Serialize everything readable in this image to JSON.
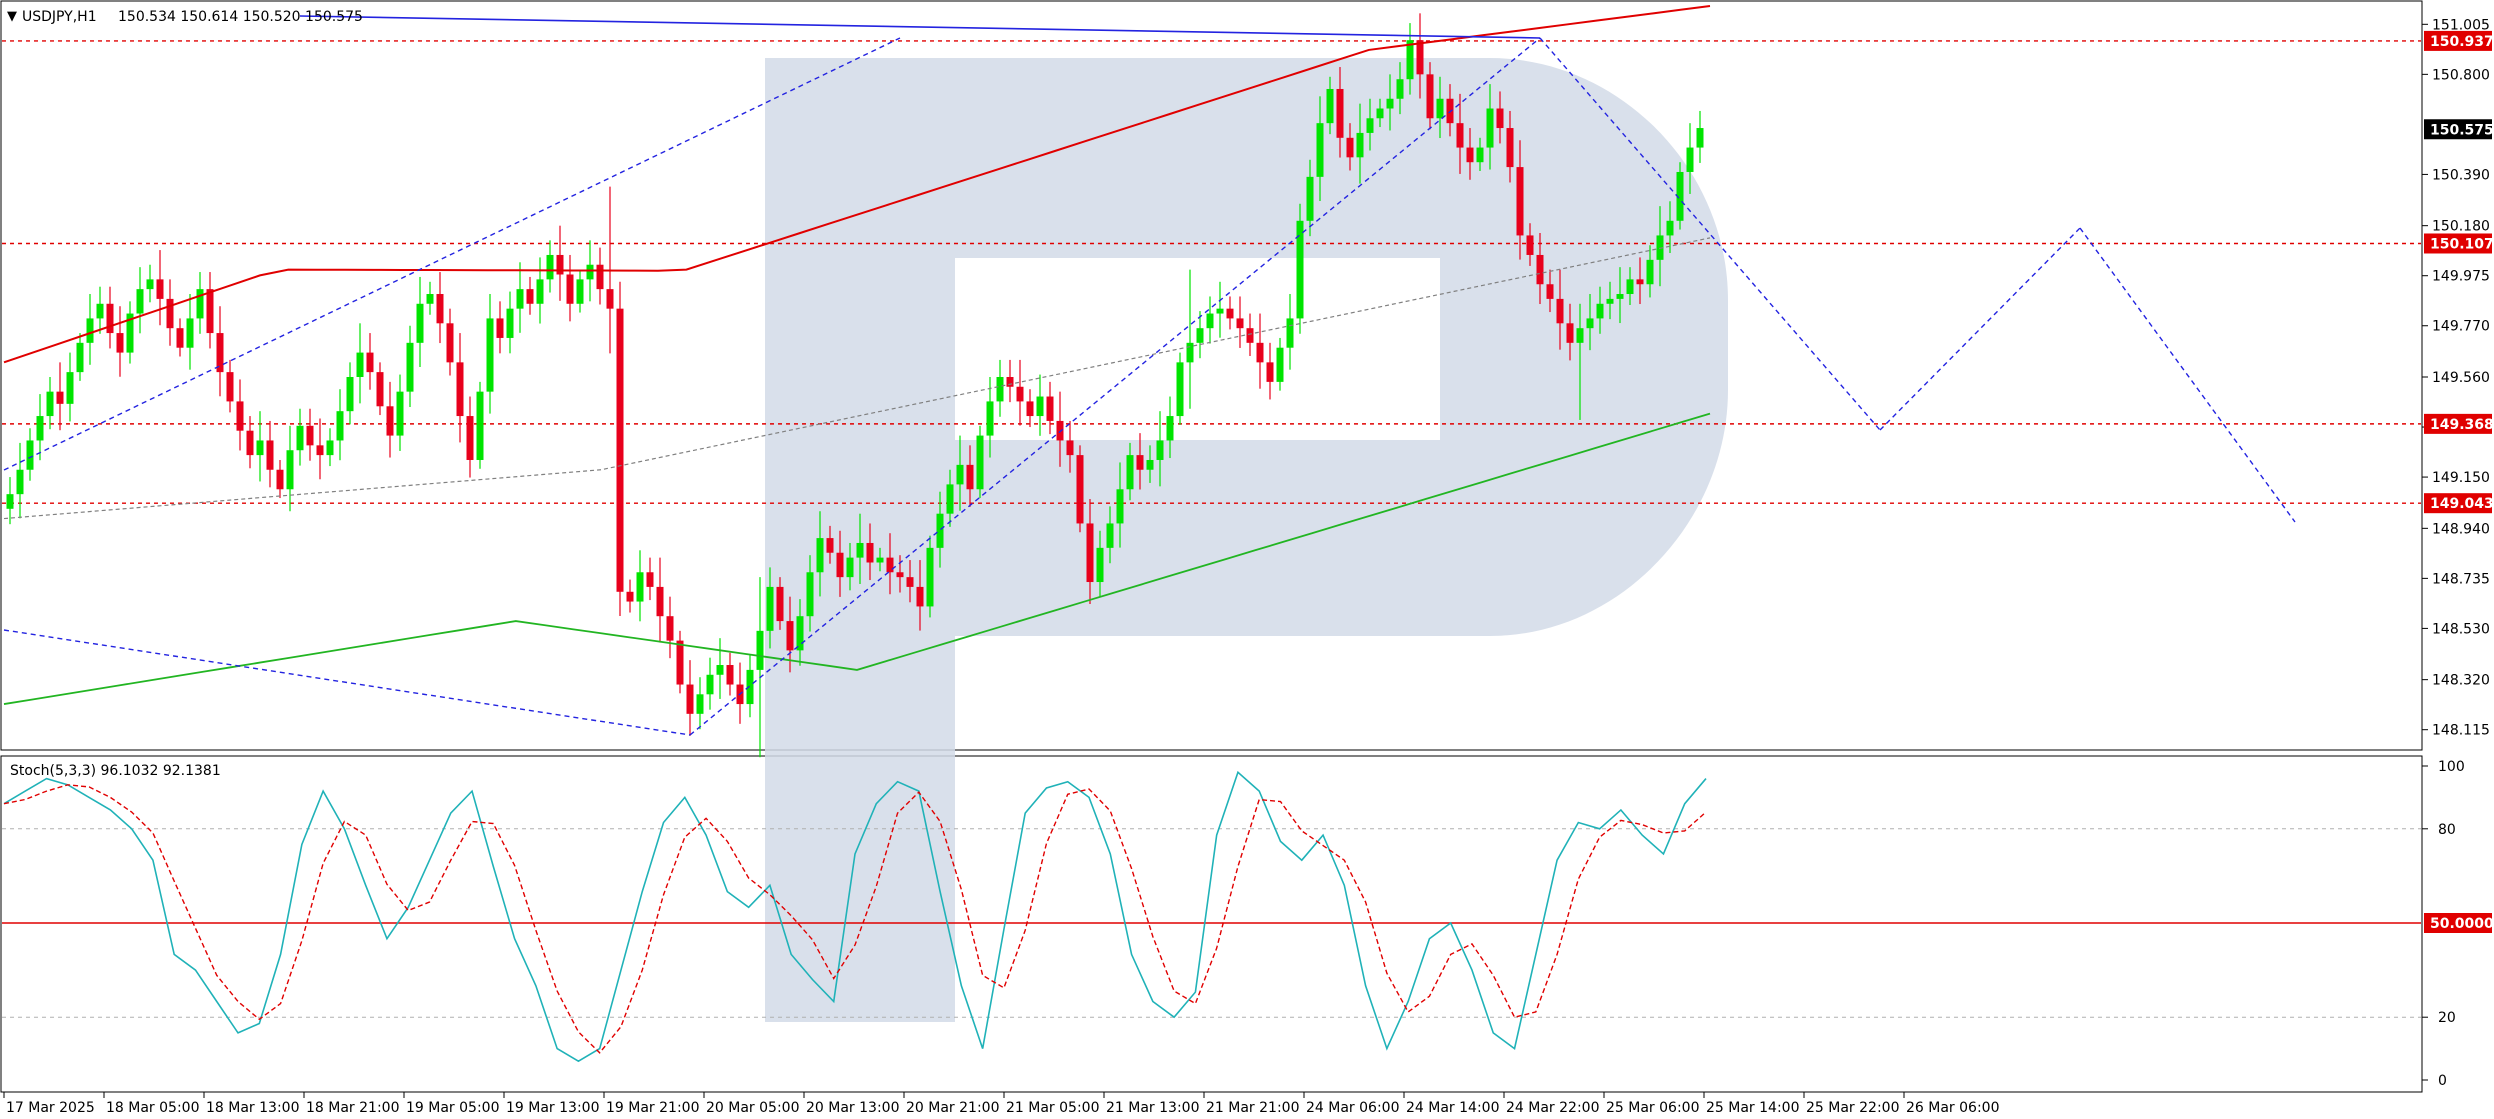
{
  "header": {
    "symbol": "USDJPY,H1",
    "ohlc": "150.534 150.614 150.520 150.575"
  },
  "stoch_header": "Stoch(5,3,3) 96.1032 92.1381",
  "colors": {
    "bull": "#00e400",
    "bear": "#e8001c",
    "ma_slow": "#e00000",
    "ma_fast": "#22b522",
    "ma_mid": "#808080",
    "level": "#e00000",
    "trend": "#2323e0",
    "stoch_main": "#20b2b8",
    "stoch_signal": "#e00000",
    "watermark": "#d2dbe8"
  },
  "chart_data": [
    {
      "type": "candlestick",
      "title": "USDJPY,H1",
      "ylim": [
        148.0,
        151.1
      ],
      "y_ticks": [
        "151.005",
        "150.800",
        "150.390",
        "150.180",
        "149.975",
        "149.770",
        "149.560",
        "149.355",
        "149.150",
        "148.940",
        "148.735",
        "148.530",
        "148.320",
        "148.115"
      ],
      "price_labels": [
        {
          "value": "150.937",
          "kind": "level"
        },
        {
          "value": "150.575",
          "kind": "current"
        },
        {
          "value": "150.107",
          "kind": "level"
        },
        {
          "value": "149.368",
          "kind": "level"
        },
        {
          "value": "149.043",
          "kind": "level"
        }
      ],
      "x_labels": [
        "17 Mar 2025",
        "18 Mar 05:00",
        "18 Mar 13:00",
        "18 Mar 21:00",
        "19 Mar 05:00",
        "19 Mar 13:00",
        "19 Mar 21:00",
        "20 Mar 05:00",
        "20 Mar 13:00",
        "20 Mar 21:00",
        "21 Mar 05:00",
        "21 Mar 13:00",
        "21 Mar 21:00",
        "24 Mar 06:00",
        "24 Mar 14:00",
        "24 Mar 22:00",
        "25 Mar 06:00",
        "25 Mar 14:00",
        "25 Mar 22:00",
        "26 Mar 06:00"
      ],
      "candles_close": [
        149.08,
        149.18,
        149.3,
        149.4,
        149.5,
        149.45,
        149.58,
        149.7,
        149.8,
        149.86,
        149.74,
        149.66,
        149.82,
        149.92,
        149.96,
        149.88,
        149.76,
        149.68,
        149.8,
        149.92,
        149.74,
        149.58,
        149.46,
        149.34,
        149.24,
        149.3,
        149.18,
        149.1,
        149.26,
        149.36,
        149.28,
        149.24,
        149.3,
        149.42,
        149.56,
        149.66,
        149.58,
        149.44,
        149.32,
        149.5,
        149.7,
        149.86,
        149.9,
        149.78,
        149.62,
        149.4,
        149.22,
        149.5,
        149.8,
        149.72,
        149.84,
        149.92,
        149.86,
        149.96,
        150.06,
        149.98,
        149.86,
        149.96,
        150.02,
        149.92,
        149.84,
        148.68,
        148.64,
        148.76,
        148.7,
        148.58,
        148.48,
        148.3,
        148.18,
        148.26,
        148.34,
        148.38,
        148.3,
        148.22,
        148.36,
        148.52,
        148.7,
        148.56,
        148.44,
        148.58,
        148.76,
        148.9,
        148.84,
        148.74,
        148.82,
        148.88,
        148.8,
        148.82,
        148.76,
        148.74,
        148.7,
        148.62,
        148.86,
        149.0,
        149.12,
        149.2,
        149.1,
        149.32,
        149.46,
        149.56,
        149.52,
        149.46,
        149.4,
        149.48,
        149.38,
        149.3,
        149.24,
        148.96,
        148.72,
        148.86,
        148.96,
        149.1,
        149.24,
        149.18,
        149.22,
        149.3,
        149.4,
        149.62,
        149.7,
        149.76,
        149.82,
        149.84,
        149.8,
        149.76,
        149.7,
        149.62,
        149.54,
        149.68,
        149.8,
        150.2,
        150.38,
        150.6,
        150.74,
        150.54,
        150.46,
        150.56,
        150.62,
        150.66,
        150.7,
        150.78,
        150.94,
        150.8,
        150.62,
        150.7,
        150.6,
        150.5,
        150.44,
        150.5,
        150.66,
        150.58,
        150.42,
        150.14,
        150.06,
        149.94,
        149.88,
        149.78,
        149.7,
        149.76,
        149.8,
        149.86,
        149.88,
        149.9,
        149.96,
        149.94,
        150.04,
        150.14,
        150.2,
        150.4,
        150.5,
        150.58
      ],
      "series": [
        {
          "name": "MA slow",
          "color_key": "ma_slow"
        },
        {
          "name": "MA fast",
          "color_key": "ma_fast"
        },
        {
          "name": "MA mid",
          "color_key": "ma_mid"
        }
      ]
    },
    {
      "type": "line",
      "title": "Stoch(5,3,3) 96.1032 92.1381",
      "ylim": [
        0,
        100
      ],
      "y_ticks": [
        "100",
        "80",
        "20",
        "0"
      ],
      "levels": [
        {
          "value": 80,
          "label": ""
        },
        {
          "value": 50,
          "label": "50.0000"
        },
        {
          "value": 20,
          "label": ""
        }
      ],
      "series": [
        {
          "name": "Main",
          "color_key": "stoch_main"
        },
        {
          "name": "Signal",
          "color_key": "stoch_signal"
        }
      ]
    }
  ]
}
